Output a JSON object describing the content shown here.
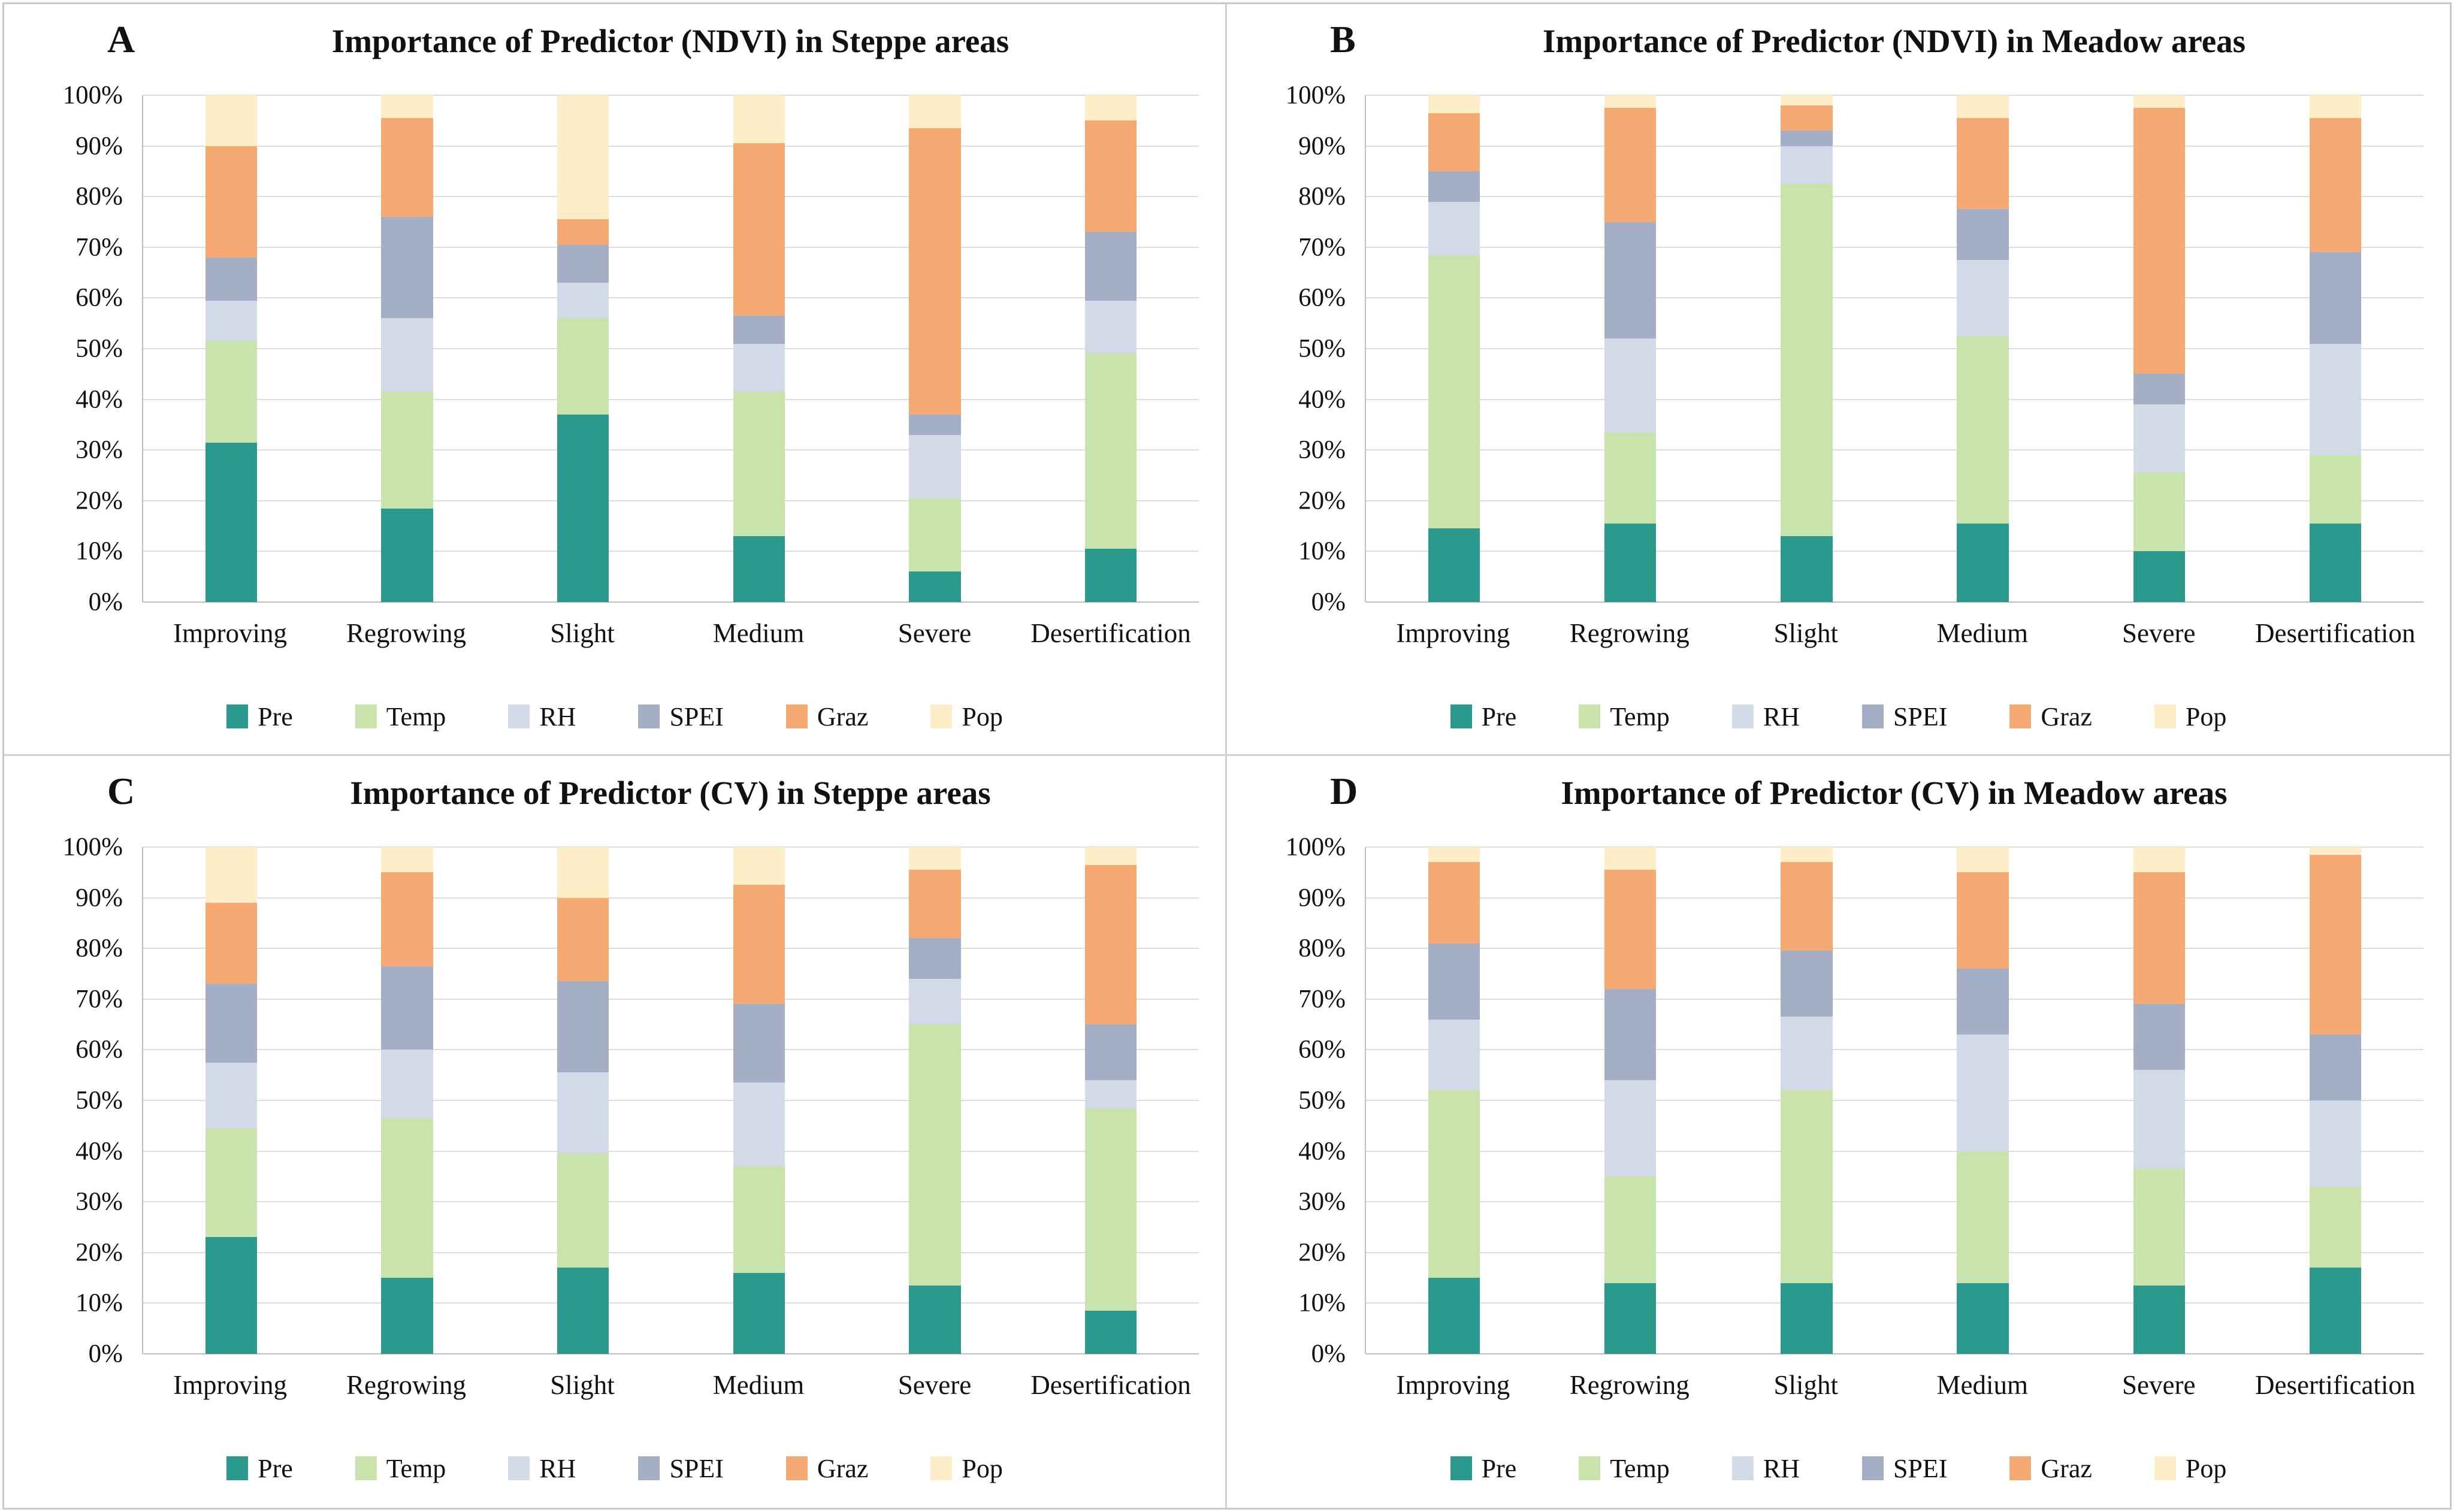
{
  "figure": {
    "panel_letters": [
      "A",
      "B",
      "C",
      "D"
    ],
    "y_axis_ticks_top_down": [
      "100%",
      "90%",
      "80%",
      "70%",
      "60%",
      "50%",
      "40%",
      "30%",
      "20%",
      "10%",
      "0%"
    ],
    "border_color": "#c9c9c9",
    "gridline_color": "#dedede",
    "axis_line_color": "#bdbdbd",
    "text_color": "#111111"
  },
  "chart_data": [
    {
      "type": "bar",
      "stacked": true,
      "units": "percent",
      "panel": "A",
      "title": "Importance of Predictor (NDVI) in Steppe areas",
      "ylim": [
        0,
        100
      ],
      "grid": true,
      "legend_position": "bottom",
      "categories": [
        "Improving",
        "Regrowing",
        "Slight",
        "Medium",
        "Severe",
        "Desertification"
      ],
      "series": [
        {
          "name": "Pre",
          "color": "#2b9a8d",
          "values": [
            31.5,
            18.5,
            37.0,
            13.0,
            6.0,
            10.5
          ]
        },
        {
          "name": "Temp",
          "color": "#c9e3ad",
          "values": [
            20.0,
            23.0,
            19.0,
            28.5,
            14.5,
            38.5
          ]
        },
        {
          "name": "RH",
          "color": "#d3dae7",
          "values": [
            8.0,
            14.5,
            7.0,
            9.5,
            12.5,
            10.5
          ]
        },
        {
          "name": "SPEI",
          "color": "#a4afc5",
          "values": [
            8.5,
            20.0,
            7.5,
            5.5,
            4.0,
            13.5
          ]
        },
        {
          "name": "Graz",
          "color": "#f6aa73",
          "values": [
            22.0,
            19.5,
            5.0,
            34.0,
            56.5,
            22.0
          ]
        },
        {
          "name": "Pop",
          "color": "#fdeec8",
          "values": [
            10.0,
            4.5,
            24.5,
            9.5,
            6.5,
            5.0
          ]
        }
      ]
    },
    {
      "type": "bar",
      "stacked": true,
      "units": "percent",
      "panel": "B",
      "title": "Importance of Predictor (NDVI) in Meadow areas",
      "ylim": [
        0,
        100
      ],
      "grid": true,
      "legend_position": "bottom",
      "categories": [
        "Improving",
        "Regrowing",
        "Slight",
        "Medium",
        "Severe",
        "Desertification"
      ],
      "series": [
        {
          "name": "Pre",
          "color": "#2b9a8d",
          "values": [
            14.5,
            15.5,
            13.0,
            15.5,
            10.0,
            15.5
          ]
        },
        {
          "name": "Temp",
          "color": "#c9e3ad",
          "values": [
            54.0,
            18.0,
            69.5,
            37.0,
            15.5,
            13.5
          ]
        },
        {
          "name": "RH",
          "color": "#d3dae7",
          "values": [
            10.5,
            18.5,
            7.5,
            15.0,
            13.5,
            22.0
          ]
        },
        {
          "name": "SPEI",
          "color": "#a4afc5",
          "values": [
            6.0,
            23.0,
            3.0,
            10.0,
            6.0,
            18.0
          ]
        },
        {
          "name": "Graz",
          "color": "#f6aa73",
          "values": [
            11.5,
            22.5,
            5.0,
            18.0,
            52.5,
            26.5
          ]
        },
        {
          "name": "Pop",
          "color": "#fdeec8",
          "values": [
            3.5,
            2.5,
            2.0,
            4.5,
            2.5,
            4.5
          ]
        }
      ]
    },
    {
      "type": "bar",
      "stacked": true,
      "units": "percent",
      "panel": "C",
      "title": "Importance of Predictor (CV) in Steppe areas",
      "ylim": [
        0,
        100
      ],
      "grid": true,
      "legend_position": "bottom",
      "categories": [
        "Improving",
        "Regrowing",
        "Slight",
        "Medium",
        "Severe",
        "Desertification"
      ],
      "series": [
        {
          "name": "Pre",
          "color": "#2b9a8d",
          "values": [
            23.0,
            15.0,
            17.0,
            16.0,
            13.5,
            8.5
          ]
        },
        {
          "name": "Temp",
          "color": "#c9e3ad",
          "values": [
            21.5,
            31.5,
            22.5,
            21.0,
            51.5,
            40.0
          ]
        },
        {
          "name": "RH",
          "color": "#d3dae7",
          "values": [
            13.0,
            13.5,
            16.0,
            16.5,
            9.0,
            5.5
          ]
        },
        {
          "name": "SPEI",
          "color": "#a4afc5",
          "values": [
            15.5,
            16.5,
            18.0,
            15.5,
            8.0,
            11.0
          ]
        },
        {
          "name": "Graz",
          "color": "#f6aa73",
          "values": [
            16.0,
            18.5,
            16.5,
            23.5,
            13.5,
            31.5
          ]
        },
        {
          "name": "Pop",
          "color": "#fdeec8",
          "values": [
            11.0,
            5.0,
            10.0,
            7.5,
            4.5,
            3.5
          ]
        }
      ]
    },
    {
      "type": "bar",
      "stacked": true,
      "units": "percent",
      "panel": "D",
      "title": "Importance of Predictor (CV) in Meadow areas",
      "ylim": [
        0,
        100
      ],
      "grid": true,
      "legend_position": "bottom",
      "categories": [
        "Improving",
        "Regrowing",
        "Slight",
        "Medium",
        "Severe",
        "Desertification"
      ],
      "series": [
        {
          "name": "Pre",
          "color": "#2b9a8d",
          "values": [
            15.0,
            14.0,
            14.0,
            14.0,
            13.5,
            17.0
          ]
        },
        {
          "name": "Temp",
          "color": "#c9e3ad",
          "values": [
            37.0,
            21.0,
            38.0,
            26.0,
            23.0,
            16.0
          ]
        },
        {
          "name": "RH",
          "color": "#d3dae7",
          "values": [
            14.0,
            19.0,
            14.5,
            23.0,
            19.5,
            17.0
          ]
        },
        {
          "name": "SPEI",
          "color": "#a4afc5",
          "values": [
            15.0,
            18.0,
            13.0,
            13.0,
            13.0,
            13.0
          ]
        },
        {
          "name": "Graz",
          "color": "#f6aa73",
          "values": [
            16.0,
            23.5,
            17.5,
            19.0,
            26.0,
            35.5
          ]
        },
        {
          "name": "Pop",
          "color": "#fdeec8",
          "values": [
            3.0,
            4.5,
            3.0,
            5.0,
            5.0,
            1.5
          ]
        }
      ]
    }
  ]
}
